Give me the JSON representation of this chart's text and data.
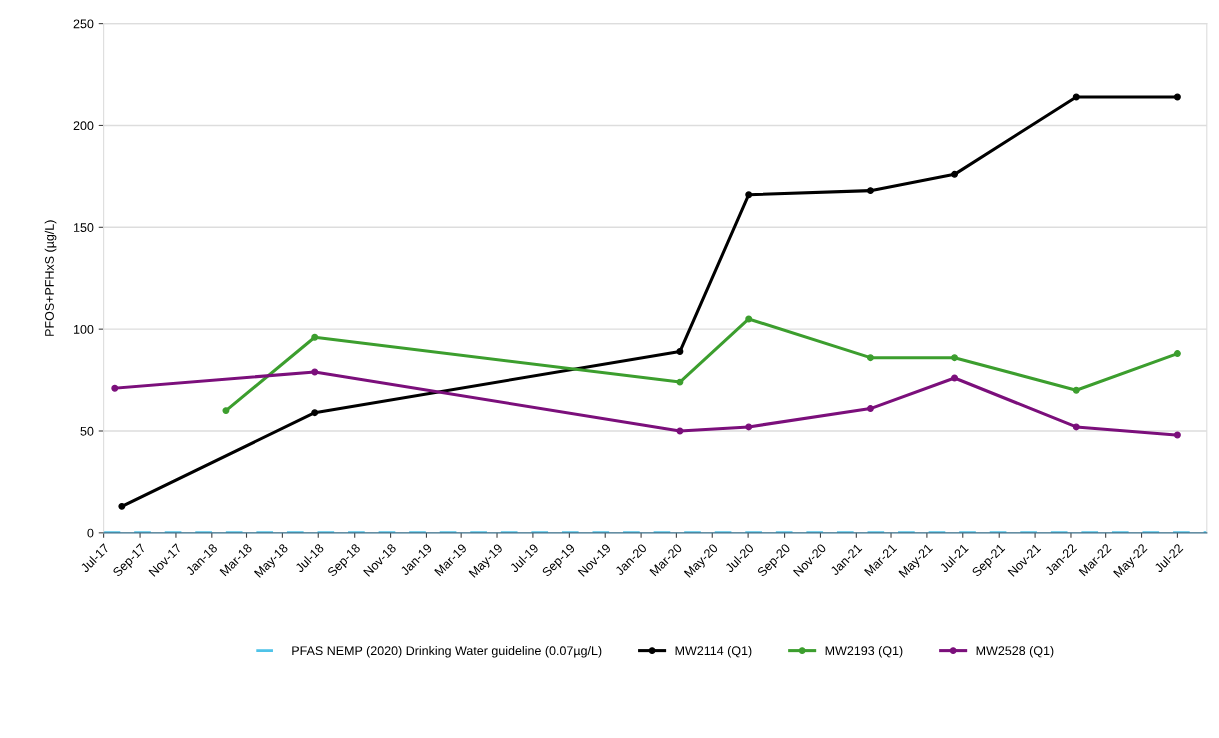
{
  "chart_data": {
    "type": "line",
    "ylabel": "PFOS+PFHxS (µg/L)",
    "xlim": [
      "2017-07",
      "2022-08-20"
    ],
    "ylim": [
      0,
      250
    ],
    "yticks": [
      0,
      50,
      100,
      150,
      200,
      250
    ],
    "xticks": [
      {
        "value": "2017-07",
        "label": "Jul-17"
      },
      {
        "value": "2017-09",
        "label": "Sep-17"
      },
      {
        "value": "2017-11",
        "label": "Nov-17"
      },
      {
        "value": "2018-01",
        "label": "Jan-18"
      },
      {
        "value": "2018-03",
        "label": "Mar-18"
      },
      {
        "value": "2018-05",
        "label": "May-18"
      },
      {
        "value": "2018-07",
        "label": "Jul-18"
      },
      {
        "value": "2018-09",
        "label": "Sep-18"
      },
      {
        "value": "2018-11",
        "label": "Nov-18"
      },
      {
        "value": "2019-01",
        "label": "Jan-19"
      },
      {
        "value": "2019-03",
        "label": "Mar-19"
      },
      {
        "value": "2019-05",
        "label": "May-19"
      },
      {
        "value": "2019-07",
        "label": "Jul-19"
      },
      {
        "value": "2019-09",
        "label": "Sep-19"
      },
      {
        "value": "2019-11",
        "label": "Nov-19"
      },
      {
        "value": "2020-01",
        "label": "Jan-20"
      },
      {
        "value": "2020-03",
        "label": "Mar-20"
      },
      {
        "value": "2020-05",
        "label": "May-20"
      },
      {
        "value": "2020-07",
        "label": "Jul-20"
      },
      {
        "value": "2020-09",
        "label": "Sep-20"
      },
      {
        "value": "2020-11",
        "label": "Nov-20"
      },
      {
        "value": "2021-01",
        "label": "Jan-21"
      },
      {
        "value": "2021-03",
        "label": "Mar-21"
      },
      {
        "value": "2021-05",
        "label": "May-21"
      },
      {
        "value": "2021-07",
        "label": "Jul-21"
      },
      {
        "value": "2021-09",
        "label": "Sep-21"
      },
      {
        "value": "2021-11",
        "label": "Nov-21"
      },
      {
        "value": "2022-01",
        "label": "Jan-22"
      },
      {
        "value": "2022-03",
        "label": "Mar-22"
      },
      {
        "value": "2022-05",
        "label": "May-22"
      },
      {
        "value": "2022-07",
        "label": "Jul-22"
      }
    ],
    "grid": "y",
    "legend": "bottom",
    "marker": "circle",
    "line_style": "solid",
    "ref_lines": [
      {
        "axis": "y",
        "value": 0.07,
        "label": "PFAS NEMP (2020) Drinking Water guideline (0.07µg/L)",
        "color": "#4fc3e8",
        "line_style": "dashed"
      }
    ],
    "series": [
      {
        "name": "MW2114 (Q1)",
        "color": "#000000",
        "x": [
          "2017-08-01",
          "2018-06-25",
          "2020-03-07",
          "2020-07-02",
          "2021-01-25",
          "2021-06-17",
          "2022-01-10",
          "2022-07-01"
        ],
        "values": [
          13,
          59,
          89,
          166,
          168,
          176,
          214,
          214
        ]
      },
      {
        "name": "MW2193 (Q1)",
        "color": "#3c9e2e",
        "x": [
          "2018-01-25",
          "2018-06-25",
          "2020-03-07",
          "2020-07-02",
          "2021-01-25",
          "2021-06-17",
          "2022-01-10",
          "2022-07-01"
        ],
        "values": [
          60,
          96,
          74,
          105,
          86,
          86,
          70,
          88
        ]
      },
      {
        "name": "MW2528 (Q1)",
        "color": "#7b0f7b",
        "x": [
          "2017-07-20",
          "2018-06-25",
          "2020-03-07",
          "2020-07-02",
          "2021-01-25",
          "2021-06-17",
          "2022-01-10",
          "2022-07-01"
        ],
        "values": [
          71,
          79,
          50,
          52,
          61,
          76,
          52,
          48
        ]
      }
    ]
  }
}
